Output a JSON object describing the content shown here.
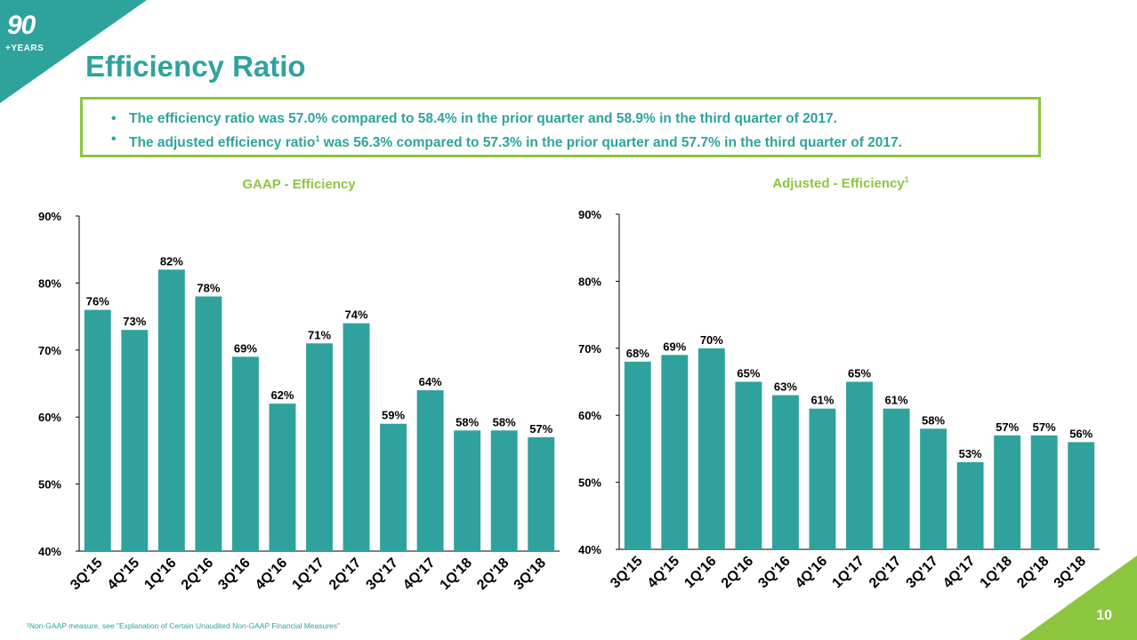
{
  "logo": {
    "number": "90",
    "subtext": "+YEARS"
  },
  "title": "Efficiency Ratio",
  "bullets": [
    {
      "text": "The efficiency ratio was 57.0% compared to 58.4% in the prior quarter and 58.9% in the third quarter of 2017."
    },
    {
      "before": "The adjusted efficiency ratio",
      "sup": "1",
      "after": " was 56.3% compared to 57.3% in the prior quarter and 57.7% in the third quarter of 2017."
    }
  ],
  "footnote": "¹Non-GAAP measure, see \"Explanation of Certain Unaudited Non-GAAP Financial Measures\"",
  "page_number": "10",
  "colors": {
    "teal": "#2ea39c",
    "bar": "#30a29d",
    "green": "#8cc63f",
    "text": "#000000"
  },
  "chart_data": [
    {
      "type": "bar",
      "title": "GAAP - Efficiency",
      "categories": [
        "3Q'15",
        "4Q'15",
        "1Q'16",
        "2Q'16",
        "3Q'16",
        "4Q'16",
        "1Q'17",
        "2Q'17",
        "3Q'17",
        "4Q'17",
        "1Q'18",
        "2Q'18",
        "3Q'18"
      ],
      "values": [
        76,
        73,
        82,
        78,
        69,
        62,
        71,
        74,
        59,
        64,
        58,
        58,
        57
      ],
      "data_labels": [
        "76%",
        "73%",
        "82%",
        "78%",
        "69%",
        "62%",
        "71%",
        "74%",
        "59%",
        "64%",
        "58%",
        "58%",
        "57%"
      ],
      "ylim": [
        40,
        90
      ],
      "yticks": [
        "40%",
        "50%",
        "60%",
        "70%",
        "80%",
        "90%"
      ],
      "grid": false,
      "legend": "none"
    },
    {
      "type": "bar",
      "title": "Adjusted - Efficiency",
      "title_sup": "1",
      "categories": [
        "3Q'15",
        "4Q'15",
        "1Q'16",
        "2Q'16",
        "3Q'16",
        "4Q'16",
        "1Q'17",
        "2Q'17",
        "3Q'17",
        "4Q'17",
        "1Q'18",
        "2Q'18",
        "3Q'18"
      ],
      "values": [
        68,
        69,
        70,
        65,
        63,
        61,
        65,
        61,
        58,
        53,
        57,
        57,
        56
      ],
      "data_labels": [
        "68%",
        "69%",
        "70%",
        "65%",
        "63%",
        "61%",
        "65%",
        "61%",
        "58%",
        "53%",
        "57%",
        "57%",
        "56%"
      ],
      "ylim": [
        40,
        90
      ],
      "yticks": [
        "40%",
        "50%",
        "60%",
        "70%",
        "80%",
        "90%"
      ],
      "grid": false,
      "legend": "none"
    }
  ]
}
